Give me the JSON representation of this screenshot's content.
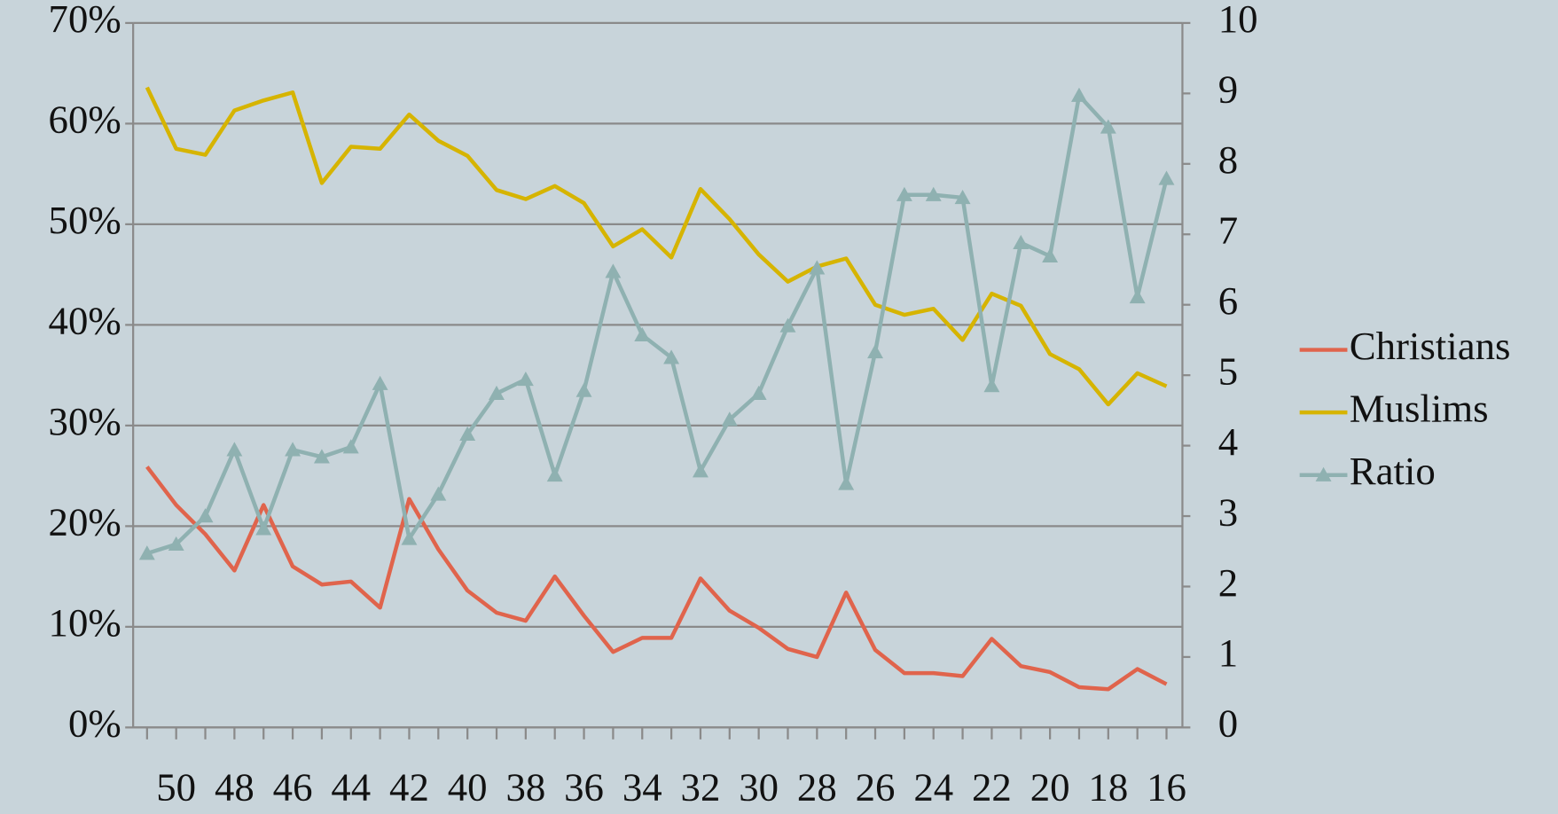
{
  "chart_data": {
    "type": "line",
    "categories": [
      null,
      "50",
      null,
      "48",
      null,
      "46",
      null,
      "44",
      null,
      "42",
      null,
      "40",
      null,
      "38",
      null,
      "36",
      null,
      "34",
      null,
      "32",
      null,
      "30",
      null,
      "28",
      null,
      "26",
      null,
      "24",
      null,
      "22",
      null,
      "20",
      null,
      "18",
      null,
      "16"
    ],
    "series": [
      {
        "name": "Christians",
        "color": "#e0644c",
        "values": [
          25.9,
          22.1,
          19.2,
          15.6,
          22.1,
          16.0,
          14.2,
          14.5,
          11.9,
          22.7,
          17.7,
          13.6,
          11.4,
          10.6,
          15.0,
          11.1,
          7.5,
          8.9,
          8.9,
          14.8,
          11.6,
          9.9,
          7.8,
          7.0,
          13.4,
          7.7,
          5.4,
          5.4,
          5.1,
          8.8,
          6.1,
          5.5,
          4.0,
          3.8,
          5.8,
          4.3
        ]
      },
      {
        "name": "Muslims",
        "color": "#d6b400",
        "values": [
          63.6,
          57.5,
          56.9,
          61.3,
          62.3,
          63.1,
          54.1,
          57.7,
          57.5,
          60.9,
          58.3,
          56.8,
          53.4,
          52.5,
          53.8,
          52.1,
          47.8,
          49.5,
          46.7,
          53.5,
          50.5,
          47.0,
          44.3,
          45.8,
          46.6,
          42.0,
          41.0,
          41.6,
          38.5,
          43.1,
          41.9,
          37.1,
          35.6,
          32.1,
          35.2,
          33.9
        ]
      },
      {
        "name": "Ratio",
        "color": "#8fb1b1",
        "axis": "y2",
        "marker": "triangle",
        "values": [
          2.47,
          2.6,
          3.0,
          3.94,
          2.82,
          3.94,
          3.84,
          3.98,
          4.88,
          2.68,
          3.31,
          4.16,
          4.74,
          4.94,
          3.58,
          4.78,
          6.47,
          5.57,
          5.25,
          3.64,
          4.37,
          4.74,
          5.7,
          6.52,
          3.46,
          5.33,
          7.56,
          7.56,
          7.52,
          4.85,
          6.88,
          6.69,
          8.97,
          8.52,
          6.11,
          7.79
        ]
      }
    ],
    "ylim": [
      0,
      70
    ],
    "yticks": [
      {
        "value": 0,
        "label": "0%"
      },
      {
        "value": 10,
        "label": "10%"
      },
      {
        "value": 20,
        "label": "20%"
      },
      {
        "value": 30,
        "label": "30%"
      },
      {
        "value": 40,
        "label": "40%"
      },
      {
        "value": 50,
        "label": "50%"
      },
      {
        "value": 60,
        "label": "60%"
      },
      {
        "value": 70,
        "label": "70%"
      }
    ],
    "y2lim": [
      0,
      10
    ],
    "y2ticks": [
      0,
      1,
      2,
      3,
      4,
      5,
      6,
      7,
      8,
      9,
      10
    ],
    "grid": true,
    "legend": "right"
  }
}
